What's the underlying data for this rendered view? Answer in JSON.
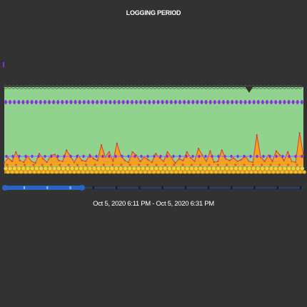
{
  "title": "LOGGING PERIOD",
  "period_label": "Oct 5, 2020 6:11 PM - Oct 5, 2020 6:31 PM",
  "colors": {
    "background": "#333232",
    "green_band": "#90d28e",
    "purple_markers": "#8a2be2",
    "orange_area": "#f5a31a",
    "red_line": "#e0392b",
    "yellow_markers": "#f3d23a",
    "slider_track": "#1f4e96",
    "slider_handle": "#2a64c5",
    "text": "#ffffff"
  },
  "chart_data": {
    "type": "area",
    "title": "LOGGING PERIOD",
    "xlabel": "",
    "ylabel": "",
    "x_range_label": "Oct 5, 2020 6:11 PM - Oct 5, 2020 6:31 PM",
    "series": [
      {
        "values": [
          0.3,
          0.9,
          0.5,
          1.6,
          0.6,
          0.4,
          1.1,
          0.5,
          0.3,
          1.4,
          0.8,
          0.4,
          1.2,
          1.3,
          0.6,
          0.5,
          1.8,
          1.1,
          0.4,
          1.2,
          0.6,
          0.5,
          1.3,
          0.8,
          0.6,
          2.4,
          1.0,
          1.6,
          0.5,
          2.6,
          1.2,
          0.6,
          0.4,
          1.6,
          1.2,
          0.5,
          1.0,
          0.7,
          0.4,
          1.4,
          0.9,
          0.5,
          1.6,
          1.0,
          0.3,
          0.8,
          0.6,
          1.6,
          0.9,
          0.5,
          2.0,
          1.2,
          0.5,
          1.7,
          0.4,
          0.5,
          1.8,
          0.8,
          0.6,
          0.9,
          0.5,
          0.7,
          1.1,
          0.5,
          0.4,
          3.6,
          1.0,
          0.5,
          1.2,
          0.5,
          1.7,
          1.2,
          0.6,
          1.6,
          0.5,
          0.4,
          3.8,
          1.2
        ]
      }
    ],
    "grid": false,
    "legend": "none"
  },
  "slider": {
    "selected_fraction": [
      0.0,
      0.26
    ],
    "tick_count": 13
  }
}
